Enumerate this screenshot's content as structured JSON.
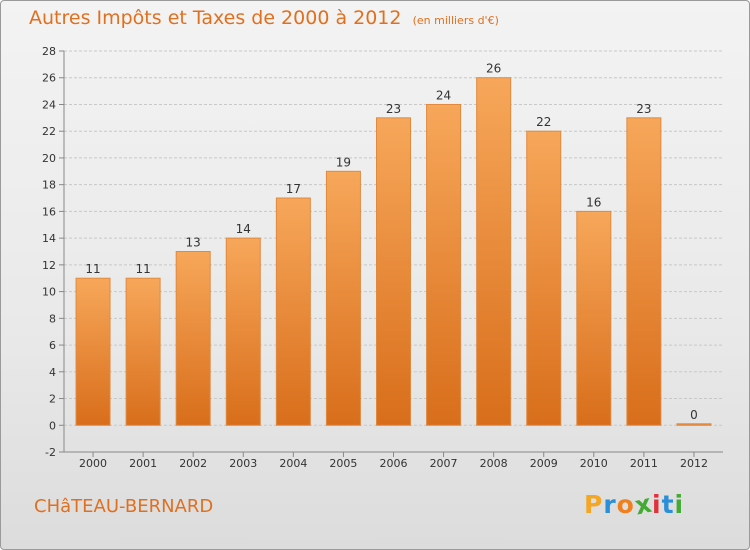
{
  "header": {
    "title": "Autres Impôts et Taxes de 2000 à 2012",
    "unit": "(en milliers d'€)"
  },
  "footer": {
    "commune": "CHâTEAU-BERNARD",
    "logo": {
      "text": "Proxiti",
      "letters": [
        "P",
        "r",
        "o",
        "x",
        "i",
        "t",
        "i"
      ],
      "colors": [
        "#f5a623",
        "#2a8fd8",
        "#f07f1d",
        "#44aa33",
        "#e0323c",
        "#2a8fd8",
        "#44aa33"
      ]
    }
  },
  "colors": {
    "bar_light": "#f7a75a",
    "bar_dark": "#d86e1b",
    "bar_stroke": "#e08a40",
    "title": "#e0701f"
  },
  "chart_data": {
    "type": "bar",
    "title": "Autres Impôts et Taxes de 2000 à 2012",
    "subtitle": "(en milliers d'€)",
    "categories": [
      "2000",
      "2001",
      "2002",
      "2003",
      "2004",
      "2005",
      "2006",
      "2007",
      "2008",
      "2009",
      "2010",
      "2011",
      "2012"
    ],
    "values": [
      11,
      11,
      13,
      14,
      17,
      19,
      23,
      24,
      26,
      22,
      16,
      23,
      0
    ],
    "data_labels": [
      "11",
      "11",
      "13",
      "14",
      "17",
      "19",
      "23",
      "24",
      "26",
      "22",
      "16",
      "23",
      "0"
    ],
    "ylim": [
      -2,
      28
    ],
    "yticks": [
      -2,
      0,
      2,
      4,
      6,
      8,
      10,
      12,
      14,
      16,
      18,
      20,
      22,
      24,
      26,
      28
    ],
    "grid": true,
    "legend": "none"
  }
}
